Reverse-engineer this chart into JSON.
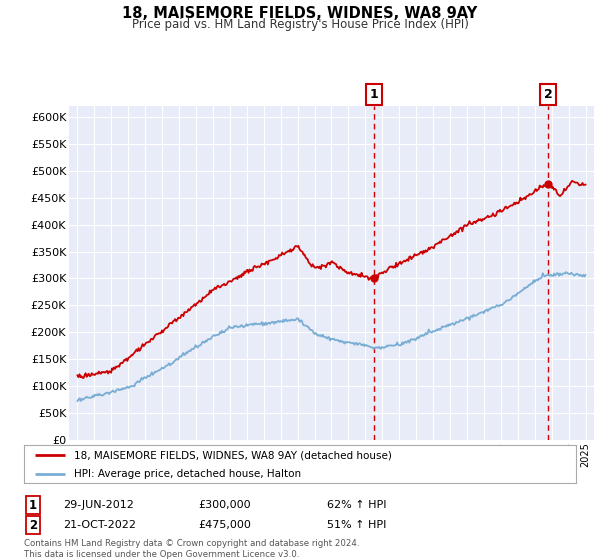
{
  "title": "18, MAISEMORE FIELDS, WIDNES, WA8 9AY",
  "subtitle": "Price paid vs. HM Land Registry's House Price Index (HPI)",
  "ylabel_ticks": [
    "£0",
    "£50K",
    "£100K",
    "£150K",
    "£200K",
    "£250K",
    "£300K",
    "£350K",
    "£400K",
    "£450K",
    "£500K",
    "£550K",
    "£600K"
  ],
  "ytick_values": [
    0,
    50000,
    100000,
    150000,
    200000,
    250000,
    300000,
    350000,
    400000,
    450000,
    500000,
    550000,
    600000
  ],
  "ylim": [
    0,
    620000
  ],
  "xlim_start": 1994.5,
  "xlim_end": 2025.5,
  "marker1_x": 2012.5,
  "marker1_y": 300000,
  "marker2_x": 2022.8,
  "marker2_y": 475000,
  "vline1_x": 2012.5,
  "vline2_x": 2022.8,
  "legend_line1": "18, MAISEMORE FIELDS, WIDNES, WA8 9AY (detached house)",
  "legend_line2": "HPI: Average price, detached house, Halton",
  "annot1_num": "1",
  "annot1_date": "29-JUN-2012",
  "annot1_price": "£300,000",
  "annot1_hpi": "62% ↑ HPI",
  "annot2_num": "2",
  "annot2_date": "21-OCT-2022",
  "annot2_price": "£475,000",
  "annot2_hpi": "51% ↑ HPI",
  "footer": "Contains HM Land Registry data © Crown copyright and database right 2024.\nThis data is licensed under the Open Government Licence v3.0.",
  "red_color": "#cc0000",
  "blue_color": "#7aadd4",
  "background_plot": "#e8ecf8",
  "background_fig": "#ffffff",
  "grid_color": "#ffffff",
  "vline_color": "#cc0000"
}
